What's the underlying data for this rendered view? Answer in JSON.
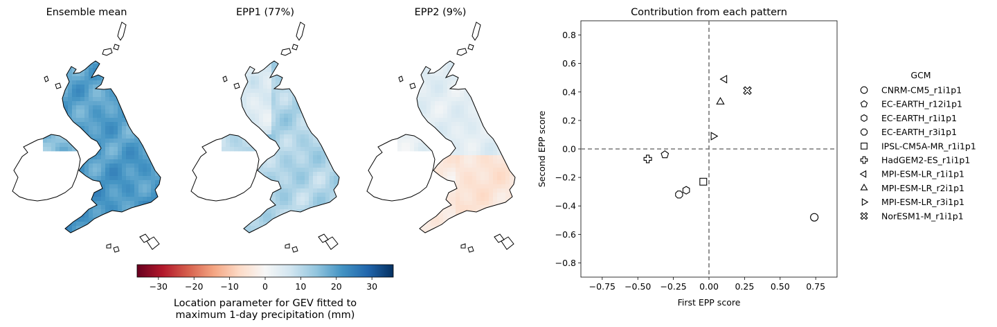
{
  "maps": {
    "panels": [
      {
        "title": "Ensemble mean"
      },
      {
        "title": "EPP1 (77%)"
      },
      {
        "title": "EPP2 (9%)"
      }
    ],
    "colorbar": {
      "ticks": [
        -30,
        -20,
        -10,
        0,
        10,
        20,
        30
      ],
      "tick_labels": [
        "−30",
        "−20",
        "−10",
        "0",
        "10",
        "20",
        "30"
      ],
      "range": [
        -36,
        36
      ],
      "label_line1": "Location parameter for GEV fitted to",
      "label_line2": "maximum 1-day precipitation (mm)",
      "colormap": [
        "#67001f",
        "#b2182b",
        "#d6604d",
        "#f4a582",
        "#fddbc7",
        "#f7f7f7",
        "#d1e5f0",
        "#92c5de",
        "#4393c3",
        "#2166ac",
        "#053061"
      ]
    }
  },
  "chart_data": {
    "type": "scatter",
    "title": "Contribution from each pattern",
    "xlabel": "First EPP score",
    "ylabel": "Second EPP score",
    "xlim": [
      -0.9,
      0.9
    ],
    "ylim": [
      -0.9,
      0.9
    ],
    "xticks": [
      -0.75,
      -0.5,
      -0.25,
      0.0,
      0.25,
      0.5,
      0.75
    ],
    "xtick_labels": [
      "−0.75",
      "−0.50",
      "−0.25",
      "0.00",
      "0.25",
      "0.50",
      "0.75"
    ],
    "yticks": [
      -0.8,
      -0.6,
      -0.4,
      -0.2,
      0.0,
      0.2,
      0.4,
      0.6,
      0.8
    ],
    "ytick_labels": [
      "−0.8",
      "−0.6",
      "−0.4",
      "−0.2",
      "0.0",
      "0.2",
      "0.4",
      "0.6",
      "0.8"
    ],
    "reference_lines": {
      "x": 0,
      "y": 0
    },
    "legend": {
      "title": "GCM",
      "placement": "right outside"
    },
    "series": [
      {
        "name": "CNRM-CM5_r1i1p1",
        "marker": "circle",
        "x": 0.74,
        "y": -0.48
      },
      {
        "name": "EC-EARTH_r12i1p1",
        "marker": "pentagon",
        "x": -0.31,
        "y": -0.04
      },
      {
        "name": "EC-EARTH_r1i1p1",
        "marker": "hexagon",
        "x": -0.16,
        "y": -0.29
      },
      {
        "name": "EC-EARTH_r3i1p1",
        "marker": "octagon",
        "x": -0.21,
        "y": -0.32
      },
      {
        "name": "IPSL-CM5A-MR_r1i1p1",
        "marker": "square",
        "x": -0.04,
        "y": -0.23
      },
      {
        "name": "HadGEM2-ES_r1i1p1",
        "marker": "plus",
        "x": -0.43,
        "y": -0.07
      },
      {
        "name": "MPI-ESM-LR_r1i1p1",
        "marker": "triangle-left",
        "x": 0.11,
        "y": 0.49
      },
      {
        "name": "MPI-ESM-LR_r2i1p1",
        "marker": "triangle-up",
        "x": 0.08,
        "y": 0.33
      },
      {
        "name": "MPI-ESM-LR_r3i1p1",
        "marker": "triangle-right",
        "x": 0.03,
        "y": 0.09
      },
      {
        "name": "NorESM1-M_r1i1p1",
        "marker": "x-filled",
        "x": 0.27,
        "y": 0.41
      }
    ]
  }
}
